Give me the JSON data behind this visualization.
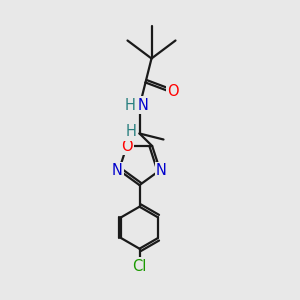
{
  "bg_color": "#e8e8e8",
  "bond_color": "#1a1a1a",
  "atom_colors": {
    "O": "#ff0000",
    "N": "#0000cc",
    "Cl": "#1a9900",
    "C": "#1a1a1a",
    "H": "#2a8080"
  },
  "lw": 1.6,
  "fs": 10.5
}
